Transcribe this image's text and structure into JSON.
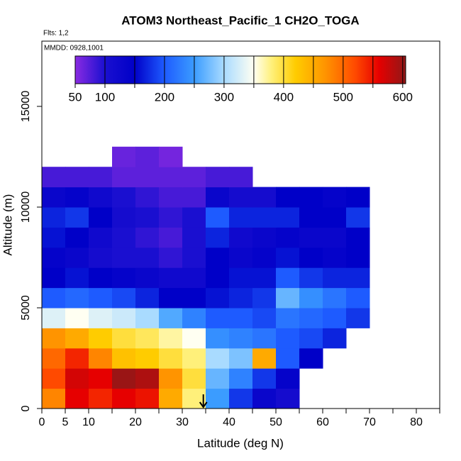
{
  "chart_data": {
    "type": "heatmap",
    "title": "ATOM3 Northeast_Pacific_1 CH2O_TOGA",
    "subtitle": "Flts: 1,2",
    "annotation": "MMDD: 0928,1001",
    "x_label": "Latitude (deg N)",
    "y_label": "Altitude (m)",
    "xlim": [
      0,
      85
    ],
    "ylim": [
      0,
      18240
    ],
    "xticks": [
      0,
      5,
      10,
      20,
      30,
      40,
      50,
      60,
      70,
      80
    ],
    "xminor": [
      15,
      25,
      35,
      45,
      55,
      65,
      75,
      85
    ],
    "yticks": [
      0,
      5000,
      10000,
      15000
    ],
    "x_bins": [
      0,
      5,
      10,
      15,
      20,
      25,
      30,
      35,
      40,
      45,
      50,
      55,
      60,
      65,
      70
    ],
    "y_bins": [
      0,
      1000,
      2000,
      3000,
      4000,
      5000,
      6000,
      7000,
      8000,
      9000,
      10000,
      11000,
      12000,
      13000
    ],
    "z": [
      [
        480,
        560,
        540,
        560,
        550,
        450,
        380,
        250,
        180,
        130,
        110,
        null,
        null,
        null
      ],
      [
        520,
        570,
        560,
        600,
        590,
        470,
        400,
        270,
        230,
        180,
        140,
        null,
        null,
        null
      ],
      [
        500,
        540,
        480,
        430,
        420,
        400,
        380,
        300,
        280,
        450,
        200,
        150,
        null,
        null
      ],
      [
        470,
        450,
        420,
        400,
        390,
        370,
        350,
        240,
        230,
        220,
        200,
        190,
        170,
        null
      ],
      [
        330,
        350,
        330,
        320,
        300,
        260,
        230,
        200,
        200,
        190,
        220,
        210,
        200,
        180
      ],
      [
        200,
        210,
        200,
        190,
        170,
        150,
        150,
        160,
        170,
        180,
        270,
        240,
        220,
        200
      ],
      [
        150,
        160,
        150,
        140,
        130,
        120,
        120,
        150,
        160,
        160,
        200,
        180,
        170,
        170
      ],
      [
        140,
        130,
        110,
        100,
        100,
        90,
        100,
        150,
        130,
        140,
        160,
        150,
        140,
        150
      ],
      [
        160,
        150,
        120,
        100,
        90,
        80,
        100,
        170,
        120,
        130,
        140,
        130,
        130,
        150
      ],
      [
        170,
        180,
        150,
        110,
        100,
        90,
        100,
        200,
        170,
        170,
        170,
        150,
        150,
        180
      ],
      [
        130,
        140,
        120,
        100,
        90,
        80,
        80,
        130,
        110,
        110,
        150,
        150,
        140,
        150
      ],
      [
        80,
        80,
        80,
        70,
        70,
        70,
        70,
        80,
        80,
        null,
        null,
        null,
        null,
        null
      ],
      [
        null,
        null,
        null,
        65,
        70,
        60,
        null,
        null,
        null,
        null,
        null,
        null,
        null,
        null
      ]
    ],
    "marker_x": 34.5,
    "colorbar_lim": [
      50,
      605
    ],
    "colorbar_ticks": [
      50,
      100,
      200,
      300,
      400,
      500,
      600
    ],
    "colorbar_minor": [
      150,
      250,
      350,
      450,
      550
    ],
    "colorscale": [
      {
        "value": 50,
        "color": "#8a2be2"
      },
      {
        "value": 100,
        "color": "#1a0fd0"
      },
      {
        "value": 150,
        "color": "#0000c8"
      },
      {
        "value": 200,
        "color": "#1e5bff"
      },
      {
        "value": 250,
        "color": "#3b9cff"
      },
      {
        "value": 300,
        "color": "#a9dbff"
      },
      {
        "value": 350,
        "color": "#fffff2"
      },
      {
        "value": 380,
        "color": "#fff07a"
      },
      {
        "value": 420,
        "color": "#ffcc00"
      },
      {
        "value": 470,
        "color": "#ff9400"
      },
      {
        "value": 520,
        "color": "#ff4a00"
      },
      {
        "value": 560,
        "color": "#e60000"
      },
      {
        "value": 605,
        "color": "#901818"
      }
    ]
  }
}
